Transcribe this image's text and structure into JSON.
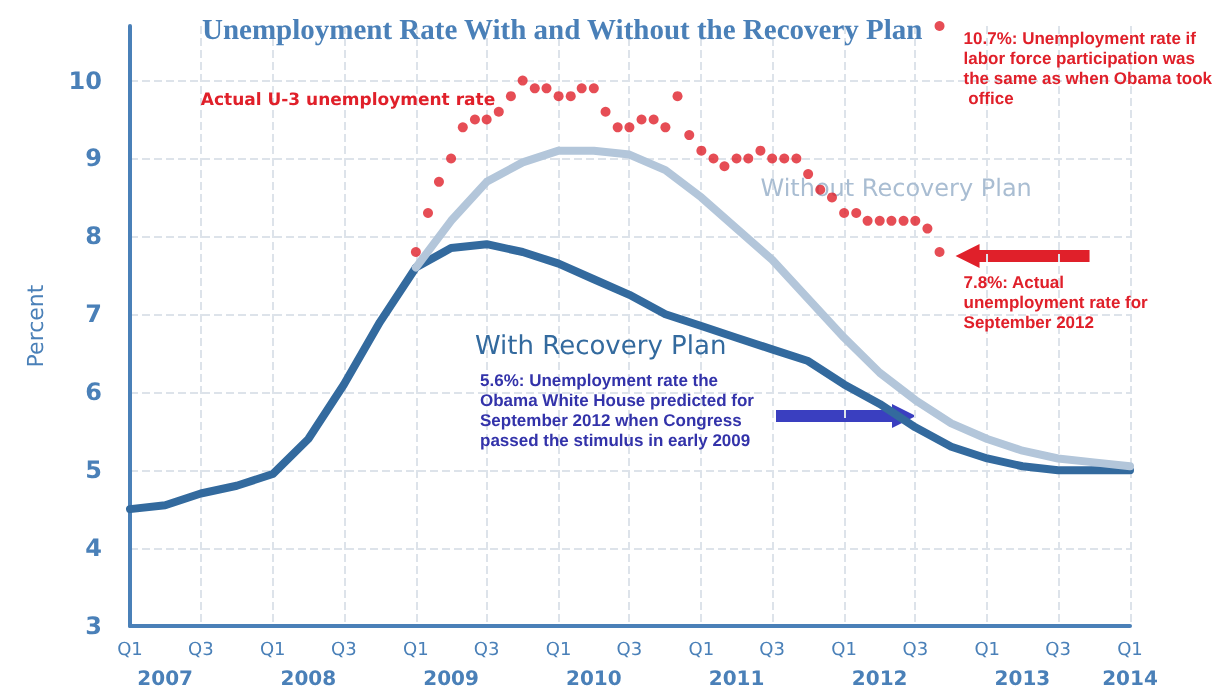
{
  "chart_data": {
    "type": "line",
    "title": "Unemployment Rate With and Without the Recovery Plan",
    "ylabel": "Percent",
    "xlim": [
      "2007-01",
      "2014-01"
    ],
    "xticks": [
      {
        "value": "2007-04",
        "label": "2007"
      },
      {
        "value": "2008-04",
        "label": "2008"
      },
      {
        "value": "2009-04",
        "label": "2009"
      },
      {
        "value": "2010-04",
        "label": "2010"
      },
      {
        "value": "2011-04",
        "label": "2011"
      },
      {
        "value": "2012-04",
        "label": "2012"
      },
      {
        "value": "2013-04",
        "label": "2013"
      },
      {
        "value": "2014-01",
        "label": "2014"
      }
    ],
    "x2lim": [
      "2007-01",
      "2014-01"
    ],
    "x2ticks": [
      {
        "value": "2007-01",
        "label": "Q1"
      },
      {
        "value": "2007-07",
        "label": "Q3"
      },
      {
        "value": "2008-01",
        "label": "Q1"
      },
      {
        "value": "2008-07",
        "label": "Q3"
      },
      {
        "value": "2009-01",
        "label": "Q1"
      },
      {
        "value": "2009-07",
        "label": "Q3"
      },
      {
        "value": "2010-01",
        "label": "Q1"
      },
      {
        "value": "2010-07",
        "label": "Q3"
      },
      {
        "value": "2011-01",
        "label": "Q1"
      },
      {
        "value": "2011-07",
        "label": "Q3"
      },
      {
        "value": "2012-01",
        "label": "Q1"
      },
      {
        "value": "2012-07",
        "label": "Q3"
      },
      {
        "value": "2013-01",
        "label": "Q1"
      },
      {
        "value": "2013-07",
        "label": "Q3"
      },
      {
        "value": "2014-01",
        "label": "Q1"
      }
    ],
    "ylim": [
      3,
      10.7
    ],
    "yticks": [
      3,
      4,
      5,
      6,
      7,
      8,
      9,
      10
    ],
    "grid": true,
    "legend": false,
    "line_style": "solid",
    "series": [
      {
        "name": "With Recovery Plan",
        "color": "#336a9e",
        "marker": "none",
        "x": [
          "2007-01",
          "2007-04",
          "2007-07",
          "2007-10",
          "2008-01",
          "2008-04",
          "2008-07",
          "2008-10",
          "2009-01",
          "2009-04",
          "2009-07",
          "2009-10",
          "2010-01",
          "2010-04",
          "2010-07",
          "2010-10",
          "2011-01",
          "2011-04",
          "2011-07",
          "2011-10",
          "2012-01",
          "2012-04",
          "2012-07",
          "2012-10",
          "2013-01",
          "2013-04",
          "2013-07",
          "2013-10",
          "2014-01"
        ],
        "values": [
          4.5,
          4.55,
          4.7,
          4.8,
          4.95,
          5.4,
          6.1,
          6.9,
          7.6,
          7.85,
          7.9,
          7.8,
          7.65,
          7.45,
          7.25,
          7.0,
          6.85,
          6.7,
          6.55,
          6.4,
          6.1,
          5.85,
          5.55,
          5.3,
          5.15,
          5.05,
          5.0,
          5.0,
          5.0
        ]
      },
      {
        "name": "Without Recovery Plan",
        "color": "#b3c6da",
        "marker": "none",
        "x": [
          "2009-01",
          "2009-04",
          "2009-07",
          "2009-10",
          "2010-01",
          "2010-04",
          "2010-07",
          "2010-10",
          "2011-01",
          "2011-04",
          "2011-07",
          "2011-10",
          "2012-01",
          "2012-04",
          "2012-07",
          "2012-10",
          "2013-01",
          "2013-04",
          "2013-07",
          "2013-10",
          "2014-01"
        ],
        "values": [
          7.6,
          8.2,
          8.7,
          8.95,
          9.1,
          9.1,
          9.05,
          8.85,
          8.5,
          8.1,
          7.7,
          7.2,
          6.7,
          6.25,
          5.9,
          5.6,
          5.4,
          5.25,
          5.15,
          5.1,
          5.05
        ]
      },
      {
        "name": "Actual U-3 unemployment rate",
        "type": "scatter",
        "color": "#e0202a",
        "marker": "circle",
        "x": [
          "2009-01",
          "2009-02",
          "2009-03",
          "2009-04",
          "2009-05",
          "2009-06",
          "2009-07",
          "2009-08",
          "2009-09",
          "2009-10",
          "2009-11",
          "2009-12",
          "2010-01",
          "2010-02",
          "2010-03",
          "2010-04",
          "2010-05",
          "2010-06",
          "2010-07",
          "2010-08",
          "2010-09",
          "2010-10",
          "2010-11",
          "2010-12",
          "2011-01",
          "2011-02",
          "2011-03",
          "2011-04",
          "2011-05",
          "2011-06",
          "2011-07",
          "2011-08",
          "2011-09",
          "2011-10",
          "2011-11",
          "2011-12",
          "2012-01",
          "2012-02",
          "2012-03",
          "2012-04",
          "2012-05",
          "2012-06",
          "2012-07",
          "2012-08",
          "2012-09"
        ],
        "values": [
          7.8,
          8.3,
          8.7,
          9.0,
          9.4,
          9.5,
          9.5,
          9.6,
          9.8,
          10.0,
          9.9,
          9.9,
          9.8,
          9.8,
          9.9,
          9.9,
          9.6,
          9.4,
          9.4,
          9.5,
          9.5,
          9.4,
          9.8,
          9.3,
          9.1,
          9.0,
          8.9,
          9.0,
          9.0,
          9.1,
          9.0,
          9.0,
          9.0,
          8.8,
          8.6,
          8.5,
          8.3,
          8.3,
          8.2,
          8.2,
          8.2,
          8.2,
          8.2,
          8.1,
          7.8
        ]
      },
      {
        "type": "scatter",
        "color": "#e0202a",
        "marker": "circle",
        "x": [
          "2012-09"
        ],
        "values": [
          10.7
        ]
      }
    ],
    "annotations": [
      {
        "text": "10.7%: Unemployment rate if labor force participation was the same as when Obama took office",
        "x": "2012-09",
        "y": 10.7
      },
      {
        "text": "7.8%: Actual unemployment rate for September 2012",
        "x": "2012-09",
        "y": 7.8
      },
      "5.6%: Unemployment rate the Obama White House predicted for September 2012 when Congress passed the stimulus in early 2009"
    ]
  }
}
